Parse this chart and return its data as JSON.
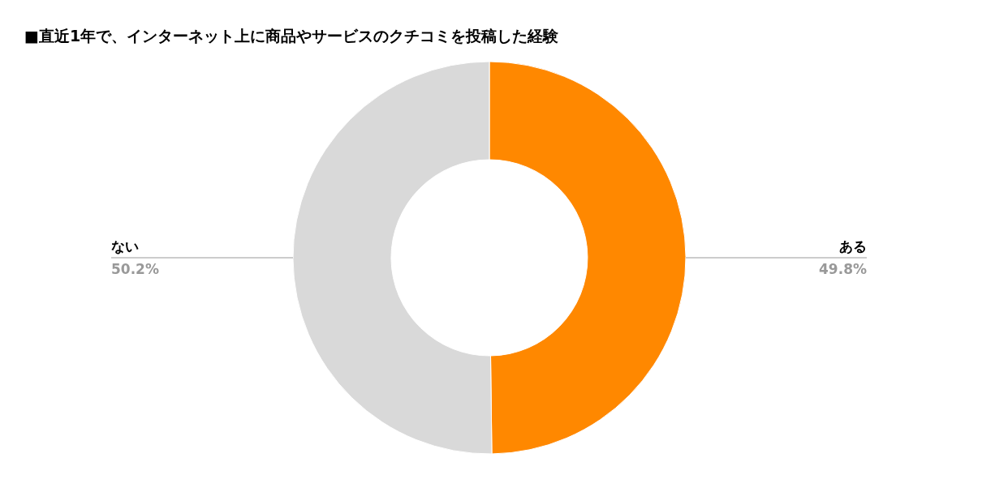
{
  "chart_data": {
    "type": "donut",
    "title": "■直近1年で、インターネット上に商品やサービスのクチコミを投稿した経験",
    "categories": [
      "ある",
      "ない"
    ],
    "values": [
      49.8,
      50.2
    ],
    "colors": [
      "#ff8800",
      "#d9d9d9"
    ],
    "value_labels": [
      "49.8%",
      "50.2%"
    ]
  }
}
